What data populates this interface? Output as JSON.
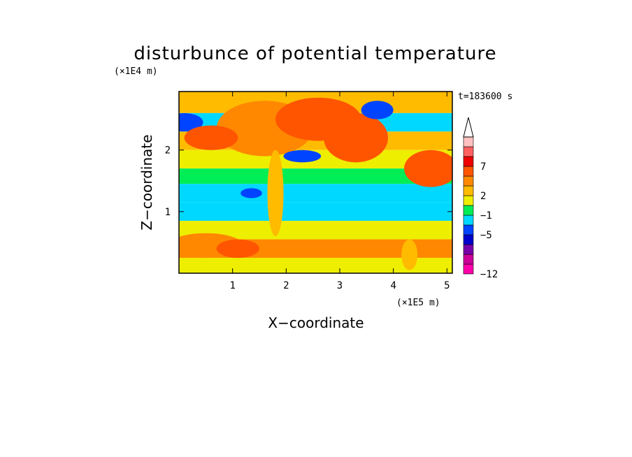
{
  "chart_data": {
    "type": "heatmap",
    "title": "disturbunce of potential temperature",
    "xlabel": "X−coordinate",
    "ylabel": "Z−coordinate",
    "x_scale_label": "(×1E5 m)",
    "y_scale_label": "(×1E4 m)",
    "time_label": "t=183600 s",
    "xlim": [
      0,
      5.1
    ],
    "ylim": [
      0,
      2.95
    ],
    "x_ticks": [
      1,
      2,
      3,
      4,
      5
    ],
    "x_tick_labels": [
      "1",
      "2",
      "3",
      "4",
      "5"
    ],
    "y_ticks": [
      1,
      2
    ],
    "y_tick_labels": [
      "1",
      "2"
    ],
    "colorbar": {
      "levels": [
        "−12",
        "−5",
        "−1",
        "2",
        "7"
      ],
      "level_values": [
        -12,
        -5,
        -1,
        2,
        7
      ],
      "colors": [
        "#ff00aa",
        "#cc0099",
        "#7700aa",
        "#0000cc",
        "#0044ff",
        "#00d8ff",
        "#00ee55",
        "#eeee00",
        "#ffbb00",
        "#ff8800",
        "#ff5500",
        "#ee0000",
        "#ff6060",
        "#ffc0c0"
      ],
      "extend": "max"
    },
    "bands": [
      {
        "z": [
          2.6,
          2.95
        ],
        "value": 1.5
      },
      {
        "z": [
          2.3,
          2.6
        ],
        "value": -1.5
      },
      {
        "z": [
          2.0,
          2.3
        ],
        "value": 1.5
      },
      {
        "z": [
          1.7,
          2.0
        ],
        "value": 0.5
      },
      {
        "z": [
          1.45,
          1.7
        ],
        "value": -0.5
      },
      {
        "z": [
          1.15,
          1.45
        ],
        "value": -2.0
      },
      {
        "z": [
          0.85,
          1.15
        ],
        "value": -1.5
      },
      {
        "z": [
          0.55,
          0.85
        ],
        "value": 0.5
      },
      {
        "z": [
          0.25,
          0.55
        ],
        "value": 2.5
      },
      {
        "z": [
          0.0,
          0.25
        ],
        "value": 0.5
      }
    ],
    "features": [
      {
        "x": 1.6,
        "z": 2.35,
        "rx": 0.9,
        "rz": 0.45,
        "value": 3.5
      },
      {
        "x": 2.6,
        "z": 2.5,
        "rx": 0.8,
        "rz": 0.35,
        "value": 4.0
      },
      {
        "x": 3.3,
        "z": 2.2,
        "rx": 0.6,
        "rz": 0.4,
        "value": 4.5
      },
      {
        "x": 4.7,
        "z": 1.7,
        "rx": 0.5,
        "rz": 0.3,
        "value": 4.5
      },
      {
        "x": 2.3,
        "z": 1.9,
        "rx": 0.35,
        "rz": 0.1,
        "value": -4.0
      },
      {
        "x": 0.1,
        "z": 2.45,
        "rx": 0.35,
        "rz": 0.15,
        "value": -4.5
      },
      {
        "x": 3.7,
        "z": 2.65,
        "rx": 0.3,
        "rz": 0.15,
        "value": -4.0
      },
      {
        "x": 0.6,
        "z": 2.2,
        "rx": 0.5,
        "rz": 0.2,
        "value": 4.0
      },
      {
        "x": 0.5,
        "z": 0.45,
        "rx": 0.7,
        "rz": 0.2,
        "value": 3.5
      },
      {
        "x": 1.1,
        "z": 0.4,
        "rx": 0.4,
        "rz": 0.15,
        "value": 4.0
      },
      {
        "x": 1.8,
        "z": 1.3,
        "rx": 0.15,
        "rz": 0.7,
        "value": 1.5
      },
      {
        "x": 1.35,
        "z": 1.3,
        "rx": 0.2,
        "rz": 0.08,
        "value": -4.0
      },
      {
        "x": 4.3,
        "z": 0.3,
        "rx": 0.15,
        "rz": 0.25,
        "value": 2.0
      }
    ]
  }
}
